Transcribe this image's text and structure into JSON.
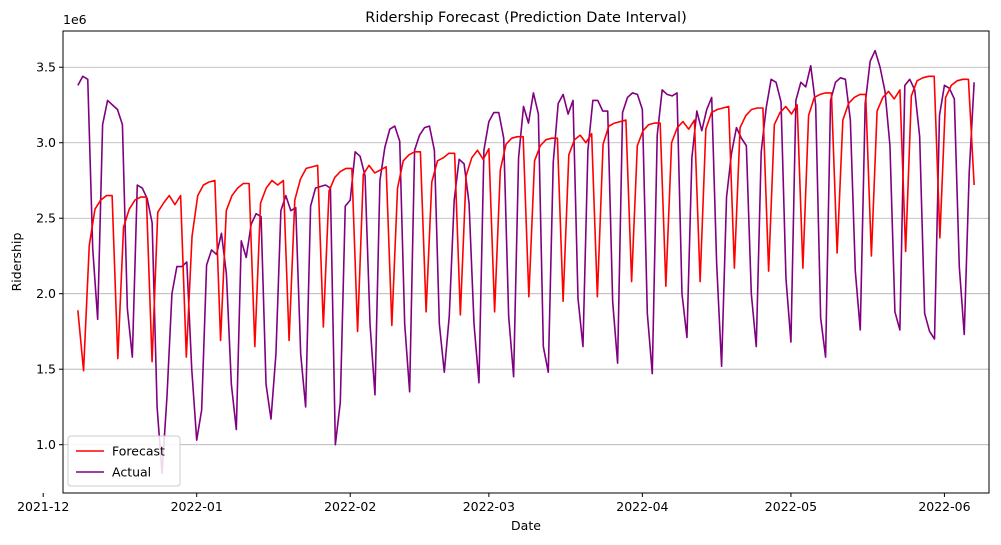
{
  "chart_data": {
    "type": "line",
    "title": "Ridership Forecast (Prediction Date Interval)",
    "xlabel": "Date",
    "ylabel": "Ridership",
    "y_offset_label": "1e6",
    "x_start": "2021-12-08",
    "x_end": "2022-06-07",
    "xlim": [
      "2021-12-05",
      "2022-06-10"
    ],
    "ylim": [
      680000,
      3740000
    ],
    "x_ticks": [
      {
        "date": "2021-12-01",
        "label": "2021-12"
      },
      {
        "date": "2022-01-01",
        "label": "2022-01"
      },
      {
        "date": "2022-02-01",
        "label": "2022-02"
      },
      {
        "date": "2022-03-01",
        "label": "2022-03"
      },
      {
        "date": "2022-04-01",
        "label": "2022-04"
      },
      {
        "date": "2022-05-01",
        "label": "2022-05"
      },
      {
        "date": "2022-06-01",
        "label": "2022-06"
      }
    ],
    "y_ticks": [
      {
        "value": 1000000,
        "label": "1.0"
      },
      {
        "value": 1500000,
        "label": "1.5"
      },
      {
        "value": 2000000,
        "label": "2.0"
      },
      {
        "value": 2500000,
        "label": "2.5"
      },
      {
        "value": 3000000,
        "label": "3.0"
      },
      {
        "value": 3500000,
        "label": "3.5"
      }
    ],
    "grid": "horizontal",
    "legend": {
      "placement": "lower-left"
    },
    "series": [
      {
        "name": "Forecast",
        "color": "#ff0000",
        "values": [
          1890000,
          1490000,
          2320000,
          2560000,
          2620000,
          2650000,
          2650000,
          1570000,
          2440000,
          2560000,
          2620000,
          2640000,
          2640000,
          1550000,
          2540000,
          2600000,
          2650000,
          2590000,
          2650000,
          1580000,
          2380000,
          2650000,
          2720000,
          2740000,
          2750000,
          1690000,
          2550000,
          2650000,
          2700000,
          2730000,
          2730000,
          1650000,
          2600000,
          2700000,
          2750000,
          2720000,
          2750000,
          1690000,
          2620000,
          2760000,
          2830000,
          2840000,
          2850000,
          1780000,
          2680000,
          2770000,
          2810000,
          2830000,
          2830000,
          1750000,
          2790000,
          2850000,
          2800000,
          2820000,
          2840000,
          1790000,
          2700000,
          2880000,
          2920000,
          2940000,
          2940000,
          1880000,
          2740000,
          2880000,
          2900000,
          2930000,
          2930000,
          1860000,
          2780000,
          2900000,
          2950000,
          2890000,
          2960000,
          1880000,
          2820000,
          2990000,
          3030000,
          3040000,
          3040000,
          1980000,
          2880000,
          2980000,
          3020000,
          3030000,
          3030000,
          1950000,
          2920000,
          3020000,
          3050000,
          3000000,
          3060000,
          1980000,
          2990000,
          3110000,
          3130000,
          3140000,
          3150000,
          2080000,
          2980000,
          3080000,
          3120000,
          3130000,
          3130000,
          2050000,
          3000000,
          3100000,
          3140000,
          3090000,
          3150000,
          2080000,
          3090000,
          3200000,
          3220000,
          3230000,
          3240000,
          2170000,
          3100000,
          3180000,
          3220000,
          3230000,
          3230000,
          2150000,
          3120000,
          3200000,
          3240000,
          3190000,
          3250000,
          2170000,
          3180000,
          3300000,
          3320000,
          3330000,
          3330000,
          2270000,
          3150000,
          3260000,
          3300000,
          3320000,
          3320000,
          2250000,
          3210000,
          3300000,
          3340000,
          3290000,
          3350000,
          2280000,
          3310000,
          3410000,
          3430000,
          3440000,
          3440000,
          2370000,
          3300000,
          3380000,
          3410000,
          3420000,
          3420000,
          2720000
        ]
      },
      {
        "name": "Actual",
        "color": "#800080",
        "values": [
          3380000,
          3440000,
          3420000,
          2300000,
          1830000,
          3120000,
          3280000,
          3250000,
          3220000,
          3120000,
          1900000,
          1580000,
          2720000,
          2700000,
          2630000,
          2470000,
          1250000,
          810000,
          1320000,
          2000000,
          2180000,
          2180000,
          2210000,
          1500000,
          1030000,
          1230000,
          2190000,
          2290000,
          2260000,
          2400000,
          2130000,
          1400000,
          1100000,
          2350000,
          2240000,
          2460000,
          2530000,
          2510000,
          1400000,
          1170000,
          1600000,
          2550000,
          2650000,
          2550000,
          2570000,
          1600000,
          1250000,
          2580000,
          2700000,
          2710000,
          2720000,
          2700000,
          1000000,
          1280000,
          2580000,
          2620000,
          2940000,
          2910000,
          2780000,
          1800000,
          1330000,
          2750000,
          2970000,
          3090000,
          3110000,
          3010000,
          1800000,
          1350000,
          2950000,
          3050000,
          3100000,
          3110000,
          2950000,
          1800000,
          1480000,
          1850000,
          2620000,
          2890000,
          2860000,
          2600000,
          1800000,
          1410000,
          2950000,
          3140000,
          3200000,
          3200000,
          3030000,
          1850000,
          1450000,
          2900000,
          3240000,
          3130000,
          3330000,
          3190000,
          1650000,
          1480000,
          2870000,
          3260000,
          3320000,
          3190000,
          3280000,
          1970000,
          1650000,
          2950000,
          3280000,
          3280000,
          3210000,
          3210000,
          1950000,
          1540000,
          3200000,
          3300000,
          3330000,
          3320000,
          3220000,
          1870000,
          1470000,
          3050000,
          3350000,
          3320000,
          3310000,
          3330000,
          2000000,
          1710000,
          2900000,
          3210000,
          3080000,
          3220000,
          3300000,
          2200000,
          1520000,
          2640000,
          2930000,
          3100000,
          3030000,
          2980000,
          2000000,
          1650000,
          2940000,
          3230000,
          3420000,
          3400000,
          3270000,
          2100000,
          1680000,
          3280000,
          3400000,
          3370000,
          3510000,
          3250000,
          1840000,
          1580000,
          3280000,
          3400000,
          3430000,
          3420000,
          3150000,
          2150000,
          1760000,
          3260000,
          3540000,
          3610000,
          3500000,
          3340000,
          2980000,
          1880000,
          1760000,
          3380000,
          3420000,
          3350000,
          3040000,
          1870000,
          1750000,
          1700000,
          3180000,
          3380000,
          3360000,
          3290000,
          2180000,
          1730000,
          2800000,
          3400000
        ]
      }
    ]
  }
}
